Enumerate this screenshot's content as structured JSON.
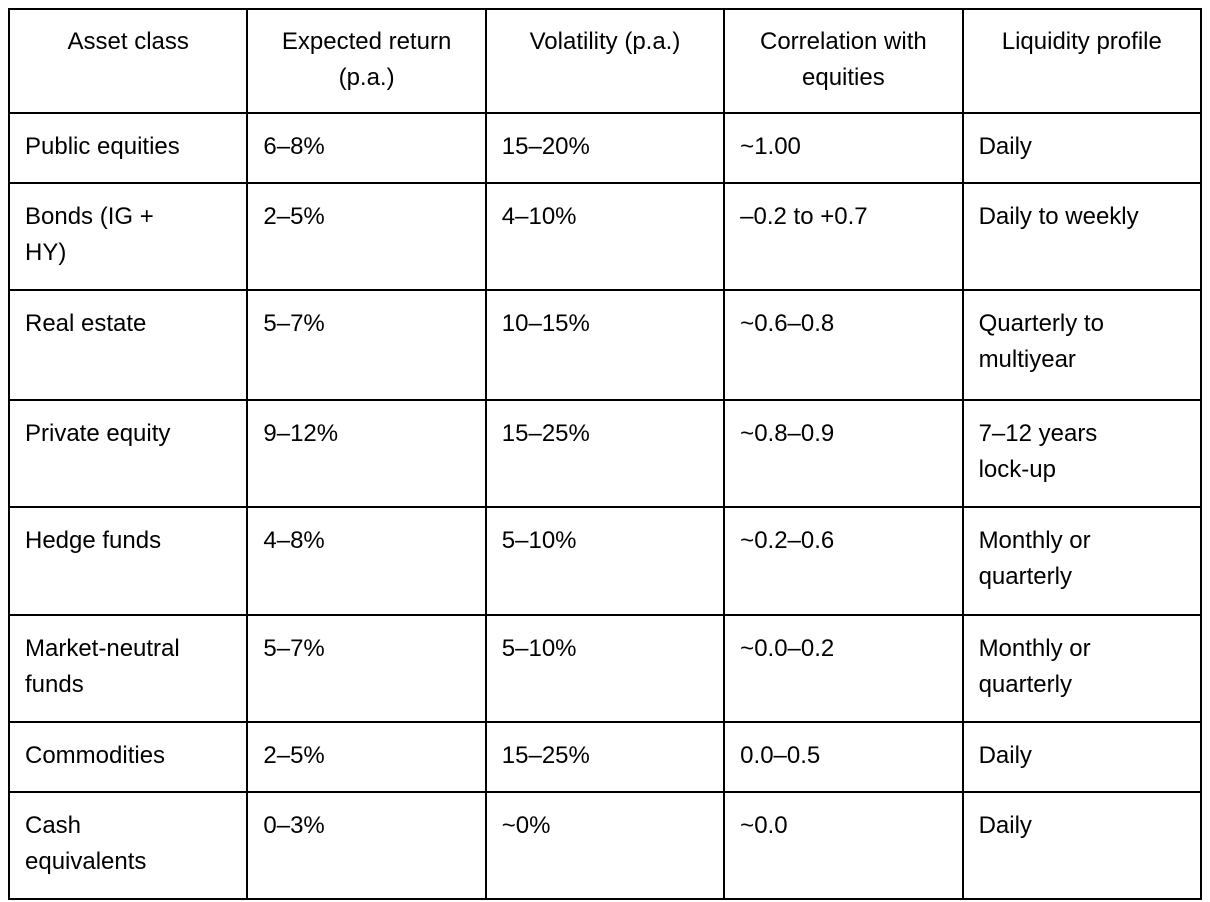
{
  "table": {
    "columns": [
      "Asset class",
      "Expected return\n(p.a.)",
      "Volatility (p.a.)",
      "Correlation with\nequities",
      "Liquidity profile"
    ],
    "rows": [
      [
        "Public equities",
        "6–8%",
        "15–20%",
        "~1.00",
        "Daily"
      ],
      [
        "Bonds (IG +\nHY)",
        "2–5%",
        "4–10%",
        "–0.2 to +0.7",
        "Daily to weekly"
      ],
      [
        "Real estate",
        "5–7%",
        "10–15%",
        "~0.6–0.8",
        "Quarterly to\nmultiyear"
      ],
      [
        "Private equity",
        "9–12%",
        "15–25%",
        "~0.8–0.9",
        "7–12 years\nlock-up"
      ],
      [
        "Hedge funds",
        "4–8%",
        "5–10%",
        "~0.2–0.6",
        "Monthly or\nquarterly"
      ],
      [
        "Market-neutral\nfunds",
        "5–7%",
        "5–10%",
        "~0.0–0.2",
        "Monthly or\nquarterly"
      ],
      [
        "Commodities",
        "2–5%",
        "15–25%",
        "0.0–0.5",
        "Daily"
      ],
      [
        "Cash\nequivalents",
        "0–3%",
        "~0%",
        "~0.0",
        "Daily"
      ]
    ],
    "colors": {
      "border": "#000000",
      "background": "#ffffff",
      "text": "#000000"
    }
  }
}
